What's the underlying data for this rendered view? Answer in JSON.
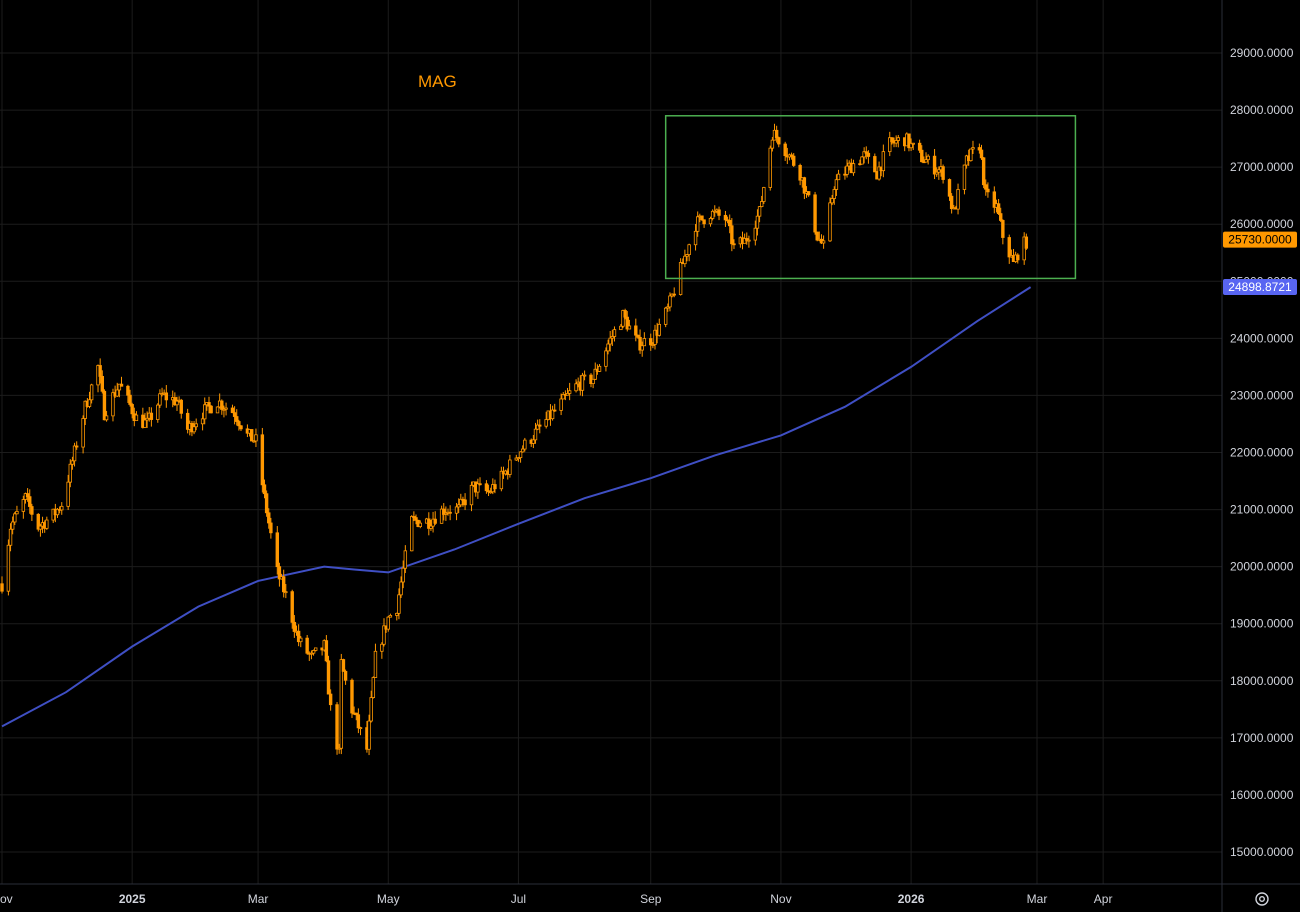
{
  "chart_data": {
    "type": "candlestick",
    "symbol": "MAG",
    "colors": {
      "background": "#000000",
      "grid": "#1c1c1c",
      "candle": "#ff9800",
      "moving_average": "#3f4fc4",
      "range_box": "#4caf50",
      "price_badge": "#ff9800",
      "ma_badge": "#5865f2",
      "axis_text": "#d1d4dc"
    },
    "y_axis": {
      "ticks": [
        "15000.0000",
        "16000.0000",
        "17000.0000",
        "18000.0000",
        "19000.0000",
        "20000.0000",
        "21000.0000",
        "22000.0000",
        "23000.0000",
        "24000.0000",
        "25000.0000",
        "26000.0000",
        "27000.0000",
        "28000.0000",
        "29000.0000"
      ],
      "range": [
        14300,
        30600
      ],
      "side": "right"
    },
    "x_axis": {
      "ticks": [
        {
          "label": "Nov",
          "date": "2024-11-01",
          "bold": false
        },
        {
          "label": "2025",
          "date": "2025-01-01",
          "bold": true
        },
        {
          "label": "Mar",
          "date": "2025-03-01",
          "bold": false
        },
        {
          "label": "May",
          "date": "2025-05-01",
          "bold": false
        },
        {
          "label": "Jul",
          "date": "2025-07-01",
          "bold": false
        },
        {
          "label": "Sep",
          "date": "2025-09-01",
          "bold": false
        },
        {
          "label": "Nov",
          "date": "2025-11-01",
          "bold": false
        },
        {
          "label": "2026",
          "date": "2026-01-01",
          "bold": true
        },
        {
          "label": "Mar",
          "date": "2026-03-01",
          "bold": false
        },
        {
          "label": "Apr",
          "date": "2026-04-01",
          "bold": false
        }
      ]
    },
    "price_path": [
      [
        "2024-11-01",
        19700
      ],
      [
        "2024-11-05",
        20700
      ],
      [
        "2024-11-12",
        21200
      ],
      [
        "2024-11-18",
        20700
      ],
      [
        "2024-11-25",
        20900
      ],
      [
        "2024-11-29",
        21100
      ],
      [
        "2024-12-05",
        22000
      ],
      [
        "2024-12-10",
        22800
      ],
      [
        "2024-12-16",
        23500
      ],
      [
        "2024-12-19",
        22700
      ],
      [
        "2024-12-26",
        23200
      ],
      [
        "2025-01-03",
        22600
      ],
      [
        "2025-01-08",
        22500
      ],
      [
        "2025-01-15",
        23000
      ],
      [
        "2025-01-22",
        22900
      ],
      [
        "2025-01-27",
        22400
      ],
      [
        "2025-02-03",
        22700
      ],
      [
        "2025-02-10",
        22900
      ],
      [
        "2025-02-18",
        22700
      ],
      [
        "2025-02-24",
        22300
      ],
      [
        "2025-02-28",
        22200
      ],
      [
        "2025-03-04",
        21200
      ],
      [
        "2025-03-10",
        19900
      ],
      [
        "2025-03-14",
        19500
      ],
      [
        "2025-03-20",
        18700
      ],
      [
        "2025-03-26",
        18400
      ],
      [
        "2025-04-01",
        18600
      ],
      [
        "2025-04-04",
        17500
      ],
      [
        "2025-04-08",
        16700
      ],
      [
        "2025-04-09",
        18300
      ],
      [
        "2025-04-14",
        17500
      ],
      [
        "2025-04-21",
        16800
      ],
      [
        "2025-04-25",
        18400
      ],
      [
        "2025-05-01",
        19100
      ],
      [
        "2025-05-05",
        19300
      ],
      [
        "2025-05-12",
        20800
      ],
      [
        "2025-05-20",
        20800
      ],
      [
        "2025-05-27",
        21000
      ],
      [
        "2025-06-03",
        21000
      ],
      [
        "2025-06-10",
        21400
      ],
      [
        "2025-06-17",
        21300
      ],
      [
        "2025-06-24",
        21600
      ],
      [
        "2025-07-01",
        22000
      ],
      [
        "2025-07-08",
        22300
      ],
      [
        "2025-07-15",
        22600
      ],
      [
        "2025-07-22",
        22900
      ],
      [
        "2025-07-29",
        23200
      ],
      [
        "2025-08-05",
        23300
      ],
      [
        "2025-08-12",
        23900
      ],
      [
        "2025-08-19",
        24400
      ],
      [
        "2025-08-26",
        23900
      ],
      [
        "2025-09-02",
        24000
      ],
      [
        "2025-09-09",
        24500
      ],
      [
        "2025-09-15",
        25200
      ],
      [
        "2025-09-22",
        26000
      ],
      [
        "2025-09-29",
        26200
      ],
      [
        "2025-10-06",
        26100
      ],
      [
        "2025-10-10",
        25600
      ],
      [
        "2025-10-15",
        25700
      ],
      [
        "2025-10-22",
        26200
      ],
      [
        "2025-10-28",
        27600
      ],
      [
        "2025-10-31",
        27500
      ],
      [
        "2025-11-05",
        27200
      ],
      [
        "2025-11-10",
        26900
      ],
      [
        "2025-11-14",
        26400
      ],
      [
        "2025-11-18",
        25800
      ],
      [
        "2025-11-21",
        25600
      ],
      [
        "2025-11-26",
        26700
      ],
      [
        "2025-12-03",
        27000
      ],
      [
        "2025-12-10",
        27200
      ],
      [
        "2025-12-16",
        26900
      ],
      [
        "2025-12-22",
        27400
      ],
      [
        "2025-12-29",
        27500
      ],
      [
        "2026-01-05",
        27200
      ],
      [
        "2026-01-12",
        27000
      ],
      [
        "2026-01-16",
        26900
      ],
      [
        "2026-01-21",
        26200
      ],
      [
        "2026-01-27",
        27100
      ],
      [
        "2026-02-02",
        27400
      ],
      [
        "2026-02-05",
        26500
      ],
      [
        "2026-02-10",
        26300
      ],
      [
        "2026-02-13",
        25800
      ],
      [
        "2026-02-18",
        25300
      ],
      [
        "2026-02-20",
        25500
      ],
      [
        "2026-02-24",
        25700
      ]
    ],
    "moving_average": [
      [
        "2024-11-01",
        17200
      ],
      [
        "2024-12-01",
        17800
      ],
      [
        "2025-01-01",
        18600
      ],
      [
        "2025-02-01",
        19300
      ],
      [
        "2025-03-01",
        19750
      ],
      [
        "2025-04-01",
        20000
      ],
      [
        "2025-04-15",
        19950
      ],
      [
        "2025-05-01",
        19900
      ],
      [
        "2025-06-01",
        20300
      ],
      [
        "2025-07-01",
        20750
      ],
      [
        "2025-08-01",
        21200
      ],
      [
        "2025-09-01",
        21550
      ],
      [
        "2025-10-01",
        21950
      ],
      [
        "2025-11-01",
        22300
      ],
      [
        "2025-12-01",
        22800
      ],
      [
        "2026-01-01",
        23500
      ],
      [
        "2026-02-01",
        24300
      ],
      [
        "2026-02-26",
        24898.8721
      ]
    ],
    "range_box": {
      "start_date": "2025-09-08",
      "end_date": "2026-03-19",
      "low": 25050,
      "high": 27900
    },
    "last_price_label": "25730.0000",
    "last_price": 25730,
    "ma_value_label": "24898.8721",
    "ma_value": 24898.8721,
    "grid": true
  }
}
